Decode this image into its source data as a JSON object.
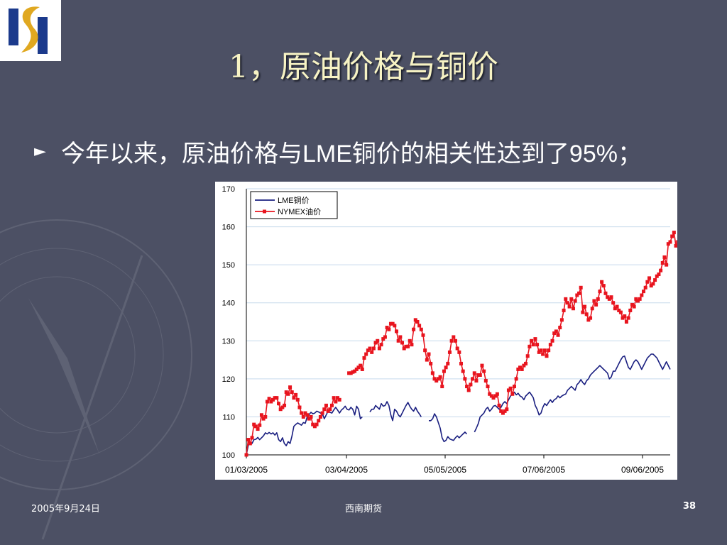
{
  "slide": {
    "title": "1，原油价格与铜价",
    "bullet": "今年以来，原油价格与LME铜价的相关性达到了95%；",
    "footer": {
      "date": "2005年9月24日",
      "org": "西南期货",
      "page": "38"
    }
  },
  "colors": {
    "background": "#4c5064",
    "title": "#f7f3c4",
    "copper": "#1a1f80",
    "oil": "#e8141e",
    "logo_blue": "#1b3a8c",
    "logo_gold": "#e0a820"
  },
  "icons": {
    "logo": "company-logo-icon",
    "bullet": "bullet-arrow-icon",
    "compass": "compass-watermark-icon"
  },
  "chart_data": {
    "type": "line",
    "ylim": [
      100,
      170
    ],
    "yticks": [
      100,
      110,
      120,
      130,
      140,
      150,
      160,
      170
    ],
    "xticks": [
      "01/03/2005",
      "03/04/2005",
      "05/05/2005",
      "07/06/2005",
      "09/06/2005"
    ],
    "grid": "horizontal",
    "legend_position": "top-left",
    "series": [
      {
        "name": "LME铜价",
        "color": "#1a1f80",
        "marker": "none",
        "values": [
          100.0,
          102.5,
          103.3,
          103.0,
          104.0,
          104.1,
          104.6,
          104.0,
          104.5,
          105.0,
          105.8,
          105.5,
          105.9,
          105.5,
          105.8,
          105.2,
          105.8,
          104.0,
          103.5,
          104.5,
          103.0,
          102.4,
          103.5,
          103.0,
          105.0,
          107.5,
          108.0,
          108.4,
          108.1,
          107.8,
          108.5,
          108.3,
          110.0,
          110.6,
          111.2,
          110.8,
          111.0,
          111.5,
          111.3,
          111.0,
          110.8,
          109.5,
          110.5,
          111.5,
          111.2,
          111.0,
          111.8,
          112.5,
          111.8,
          111.0,
          111.8,
          112.2,
          112.8,
          112.0,
          111.8,
          112.5,
          112.0,
          110.5,
          112.8,
          112.0,
          109.5,
          110.0,
          null,
          null,
          null,
          111.3,
          112.0,
          112.0,
          113.0,
          112.5,
          112.0,
          113.5,
          112.8,
          113.0,
          114.0,
          113.0,
          110.5,
          109.0,
          112.0,
          111.5,
          110.5,
          110.0,
          111.0,
          112.0,
          113.0,
          113.8,
          112.8,
          112.0,
          111.5,
          112.5,
          111.5,
          110.8,
          110.0,
          null,
          null,
          null,
          109.0,
          109.0,
          109.5,
          110.8,
          110.0,
          108.5,
          107.0,
          104.5,
          103.5,
          103.8,
          104.8,
          104.2,
          104.0,
          103.8,
          104.5,
          105.0,
          104.5,
          105.0,
          105.5,
          106.0,
          105.5,
          null,
          null,
          null,
          106.0,
          107.0,
          108.2,
          110.0,
          110.5,
          111.0,
          112.0,
          112.5,
          111.5,
          112.0,
          112.8,
          113.0,
          112.5,
          112.0,
          112.5,
          113.5,
          114.0,
          113.5,
          114.5,
          115.5,
          116.0,
          116.5,
          115.8,
          116.2,
          115.5,
          115.2,
          114.5,
          115.5,
          116.0,
          116.5,
          115.8,
          115.0,
          113.0,
          112.0,
          110.5,
          111.0,
          112.5,
          113.5,
          113.0,
          113.8,
          114.5,
          113.8,
          114.5,
          114.8,
          115.5,
          115.0,
          115.5,
          115.8,
          116.0,
          117.0,
          117.5,
          118.0,
          117.5,
          117.0,
          118.5,
          119.0,
          119.8,
          119.0,
          118.5,
          119.5,
          120.0,
          121.0,
          121.5,
          122.0,
          122.5,
          123.0,
          123.5,
          123.0,
          122.5,
          122.0,
          121.5,
          120.0,
          120.5,
          122.0,
          122.0,
          123.0,
          124.0,
          125.0,
          125.8,
          126.0,
          124.5,
          123.0,
          122.5,
          123.5,
          124.5,
          125.0,
          124.5,
          123.5,
          122.5,
          123.5,
          124.5,
          125.5,
          126.0,
          126.5,
          126.5,
          126.0,
          125.5,
          124.5,
          123.5,
          122.5,
          123.5,
          124.5,
          123.5,
          122.5
        ]
      },
      {
        "name": "NYMEX油价",
        "color": "#e8141e",
        "marker": "square",
        "values": [
          100.0,
          104.0,
          103.0,
          104.5,
          108.0,
          107.5,
          106.8,
          107.8,
          110.5,
          109.5,
          110.0,
          114.0,
          114.8,
          114.0,
          114.5,
          115.0,
          115.0,
          113.5,
          112.0,
          112.5,
          113.0,
          116.5,
          116.0,
          117.8,
          116.5,
          115.0,
          115.8,
          114.5,
          112.5,
          111.0,
          110.0,
          111.0,
          110.5,
          109.5,
          110.0,
          108.0,
          107.5,
          108.0,
          109.0,
          110.0,
          111.0,
          112.0,
          113.0,
          111.5,
          112.0,
          113.0,
          115.0,
          114.0,
          115.0,
          114.5,
          null,
          null,
          null,
          null,
          121.5,
          121.5,
          121.8,
          122.0,
          122.5,
          123.0,
          123.5,
          122.5,
          125.5,
          126.5,
          127.5,
          128.0,
          127.0,
          128.0,
          129.5,
          130.0,
          128.0,
          129.0,
          130.5,
          131.0,
          133.5,
          133.0,
          134.5,
          134.5,
          134.0,
          132.5,
          130.0,
          131.0,
          129.5,
          128.0,
          128.5,
          128.5,
          130.0,
          129.0,
          133.0,
          135.5,
          135.0,
          134.0,
          133.0,
          131.5,
          127.5,
          125.0,
          126.5,
          124.0,
          121.5,
          120.0,
          119.5,
          120.0,
          120.5,
          118.0,
          122.0,
          123.0,
          124.0,
          127.0,
          130.0,
          131.0,
          130.0,
          128.0,
          127.0,
          124.0,
          122.0,
          120.0,
          118.0,
          117.0,
          118.5,
          120.0,
          121.5,
          119.5,
          121.0,
          121.0,
          123.5,
          122.0,
          119.5,
          118.0,
          116.0,
          115.5,
          115.0,
          115.5,
          116.0,
          113.0,
          111.5,
          111.0,
          111.5,
          112.0,
          117.0,
          117.5,
          116.0,
          118.0,
          120.0,
          122.5,
          123.0,
          122.5,
          123.5,
          124.0,
          126.0,
          128.5,
          130.0,
          129.0,
          130.5,
          129.0,
          127.0,
          127.5,
          126.5,
          127.5,
          126.0,
          127.5,
          129.0,
          130.0,
          132.0,
          132.5,
          131.5,
          133.5,
          135.5,
          138.0,
          141.0,
          140.0,
          139.0,
          141.0,
          138.5,
          140.5,
          142.0,
          142.5,
          144.0,
          137.5,
          139.0,
          137.0,
          135.5,
          136.0,
          138.5,
          140.5,
          139.5,
          141.0,
          143.0,
          145.5,
          144.5,
          142.5,
          141.5,
          141.0,
          141.5,
          140.0,
          138.5,
          139.0,
          138.0,
          137.5,
          136.0,
          136.5,
          135.0,
          136.0,
          138.0,
          139.5,
          139.0,
          141.0,
          140.5,
          141.0,
          142.0,
          143.0,
          144.0,
          145.5,
          146.5,
          144.5,
          145.0,
          146.0,
          147.0,
          147.5,
          148.5,
          150.5,
          152.0,
          150.0,
          155.5,
          156.0,
          157.5,
          158.5,
          155.0,
          156.0,
          157.5,
          150.0,
          153.5,
          156.0,
          157.0,
          158.0,
          159.0,
          160.0,
          161.0,
          160.0,
          159.5,
          152.5,
          150.0,
          157.0,
          162.5,
          166.0,
          163.5,
          165.0,
          161.0,
          158.0,
          157.0,
          156.0,
          153.0,
          154.0,
          152.0,
          150.0,
          151.5,
          154.5
        ]
      }
    ]
  }
}
